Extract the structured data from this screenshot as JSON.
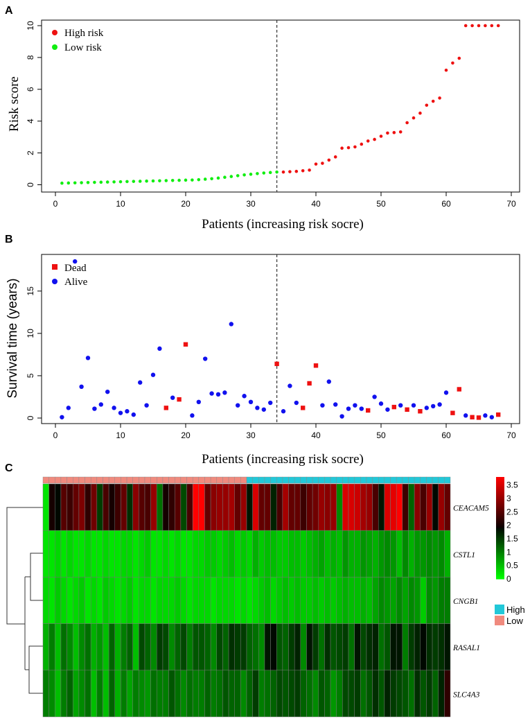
{
  "panels": {
    "a": "A",
    "b": "B",
    "c": "C"
  },
  "chart_data": [
    {
      "type": "scatter",
      "panel": "A",
      "xlabel": "Patients (increasing risk socre)",
      "ylabel": "Risk score",
      "xlim": [
        0,
        70
      ],
      "ylim": [
        0,
        10
      ],
      "xticks": [
        0,
        10,
        20,
        30,
        40,
        50,
        60,
        70
      ],
      "yticks": [
        0,
        2,
        4,
        6,
        8,
        10
      ],
      "cutoff_x": 34,
      "legend": [
        {
          "label": "High risk",
          "color": "#ee1111"
        },
        {
          "label": "Low risk",
          "color": "#11ee11"
        }
      ],
      "series": [
        {
          "name": "Low risk",
          "x": [
            1,
            2,
            3,
            4,
            5,
            6,
            7,
            8,
            9,
            10,
            11,
            12,
            13,
            14,
            15,
            16,
            17,
            18,
            19,
            20,
            21,
            22,
            23,
            24,
            25,
            26,
            27,
            28,
            29,
            30,
            31,
            32,
            33,
            34
          ],
          "y": [
            0.1,
            0.11,
            0.12,
            0.13,
            0.14,
            0.15,
            0.16,
            0.17,
            0.18,
            0.19,
            0.2,
            0.21,
            0.22,
            0.23,
            0.24,
            0.25,
            0.26,
            0.27,
            0.28,
            0.29,
            0.3,
            0.32,
            0.35,
            0.38,
            0.42,
            0.47,
            0.52,
            0.57,
            0.62,
            0.66,
            0.7,
            0.74,
            0.77,
            0.8
          ]
        },
        {
          "name": "High risk",
          "x": [
            35,
            36,
            37,
            38,
            39,
            40,
            41,
            42,
            43,
            44,
            45,
            46,
            47,
            48,
            49,
            50,
            51,
            52,
            53,
            54,
            55,
            56,
            57,
            58,
            59,
            60,
            61,
            62,
            63,
            64,
            65,
            66,
            67,
            68
          ],
          "y": [
            0.8,
            0.82,
            0.84,
            0.88,
            0.92,
            1.3,
            1.35,
            1.55,
            1.75,
            2.3,
            2.33,
            2.38,
            2.55,
            2.75,
            2.85,
            3.05,
            3.25,
            3.28,
            3.32,
            3.9,
            4.2,
            4.5,
            5.0,
            5.25,
            5.45,
            7.2,
            7.65,
            7.95,
            10,
            10,
            10,
            10,
            10,
            10
          ]
        }
      ]
    },
    {
      "type": "scatter",
      "panel": "B",
      "xlabel": "Patients (increasing risk socre)",
      "ylabel": "Survival time (years)",
      "xlim": [
        0,
        70
      ],
      "ylim": [
        0,
        19
      ],
      "xticks": [
        0,
        10,
        20,
        30,
        40,
        50,
        60,
        70
      ],
      "yticks": [
        0,
        5,
        10,
        15
      ],
      "cutoff_x": 34,
      "legend": [
        {
          "label": "Dead",
          "color": "#ee1111",
          "shape": "square"
        },
        {
          "label": "Alive",
          "color": "#1111ee",
          "shape": "circle"
        }
      ],
      "series": [
        {
          "name": "Alive",
          "x": [
            1,
            2,
            3,
            4,
            5,
            6,
            7,
            8,
            9,
            10,
            11,
            12,
            13,
            14,
            15,
            16,
            18,
            21,
            22,
            23,
            24,
            25,
            26,
            27,
            28,
            29,
            30,
            31,
            32,
            33,
            35,
            36,
            37,
            41,
            42,
            43,
            44,
            45,
            46,
            47,
            49,
            50,
            51,
            53,
            55,
            57,
            58,
            59,
            60,
            63,
            66,
            67
          ],
          "y": [
            0.1,
            1.2,
            18.5,
            3.7,
            7.1,
            1.1,
            1.6,
            3.1,
            1.2,
            0.6,
            0.8,
            0.4,
            4.2,
            1.5,
            5.1,
            8.2,
            2.4,
            0.3,
            1.9,
            7.0,
            2.9,
            2.8,
            3.0,
            11.1,
            1.5,
            2.6,
            1.9,
            1.2,
            1.0,
            1.8,
            0.8,
            3.8,
            1.8,
            1.5,
            4.3,
            1.6,
            0.2,
            1.1,
            1.5,
            1.1,
            2.5,
            1.7,
            1.0,
            1.5,
            1.5,
            1.2,
            1.4,
            1.6,
            3.0,
            0.3,
            0.3,
            0.1
          ]
        },
        {
          "name": "Dead",
          "x": [
            17,
            19,
            20,
            34,
            38,
            39,
            40,
            48,
            52,
            54,
            56,
            61,
            62,
            64,
            65,
            68
          ],
          "y": [
            1.2,
            2.2,
            8.7,
            6.4,
            1.2,
            4.1,
            6.2,
            0.9,
            1.3,
            1.0,
            0.8,
            0.6,
            3.4,
            0.1,
            0.05,
            0.4
          ]
        }
      ]
    },
    {
      "type": "heatmap",
      "panel": "C",
      "genes": [
        "CEACAM5",
        "CSTL1",
        "CNGB1",
        "RASAL1",
        "SLC4A3"
      ],
      "n_patients": 68,
      "group_split": 34,
      "group_legend": [
        {
          "label": "High",
          "color": "#22c8d8"
        },
        {
          "label": "Low",
          "color": "#f08a7e"
        }
      ],
      "colorbar_ticks": [
        "3.5",
        "3",
        "2.5",
        "2",
        "1.5",
        "1",
        "0.5",
        "0"
      ],
      "color_range": [
        0,
        3.8
      ],
      "values": [
        [
          0.2,
          2.0,
          1.9,
          2.5,
          2.3,
          2.6,
          2.8,
          2.2,
          2.7,
          1.5,
          2.4,
          2.0,
          2.3,
          2.6,
          1.6,
          2.9,
          2.5,
          2.4,
          3.0,
          1.1,
          2.0,
          2.2,
          2.5,
          1.4,
          2.4,
          3.8,
          3.8,
          2.6,
          2.9,
          3.0,
          3.0,
          3.1,
          2.6,
          3.0,
          1.8,
          3.5,
          2.6,
          2.6,
          1.7,
          2.4,
          3.1,
          2.6,
          2.6,
          2.3,
          2.6,
          2.7,
          3.0,
          2.9,
          3.0,
          0.9,
          3.5,
          3.5,
          3.4,
          3.1,
          3.0,
          2.4,
          1.8,
          3.5,
          3.6,
          3.8,
          2.3,
          1.2,
          2.9,
          2.4,
          3.0,
          1.9,
          3.0,
          2.6
        ],
        [
          0.2,
          0.2,
          0.3,
          0.2,
          0.3,
          0.2,
          0.2,
          0.3,
          0.2,
          0.2,
          0.3,
          0.2,
          0.2,
          0.3,
          0.3,
          0.2,
          0.3,
          0.4,
          0.2,
          0.2,
          0.3,
          0.2,
          0.3,
          0.2,
          0.2,
          0.3,
          0.3,
          0.4,
          0.4,
          0.3,
          0.4,
          0.5,
          0.3,
          0.4,
          0.3,
          0.6,
          0.4,
          0.5,
          0.5,
          0.4,
          0.4,
          0.5,
          0.5,
          0.4,
          0.5,
          0.6,
          0.7,
          0.5,
          0.6,
          0.5,
          0.8,
          0.6,
          0.6,
          0.8,
          0.7,
          0.6,
          0.8,
          0.9,
          0.8,
          0.5,
          0.9,
          0.6,
          0.8,
          0.8,
          0.9,
          0.8,
          0.9,
          0.6
        ],
        [
          0.3,
          0.2,
          0.4,
          0.3,
          0.2,
          0.3,
          0.4,
          0.2,
          0.3,
          0.2,
          0.4,
          0.3,
          0.2,
          0.3,
          0.4,
          0.2,
          0.3,
          0.3,
          0.2,
          0.3,
          0.3,
          0.3,
          0.4,
          0.3,
          0.2,
          0.3,
          0.3,
          0.3,
          0.2,
          0.3,
          0.3,
          0.3,
          0.2,
          0.3,
          0.2,
          0.3,
          0.4,
          0.5,
          0.3,
          0.4,
          0.5,
          0.4,
          0.5,
          0.4,
          0.4,
          0.5,
          0.4,
          0.5,
          0.4,
          0.5,
          0.6,
          0.5,
          0.5,
          0.6,
          0.5,
          0.7,
          0.9,
          0.8,
          0.7,
          0.9,
          0.7,
          0.9,
          0.8,
          0.4,
          0.9,
          0.8,
          1.0,
          1.0
        ],
        [
          0.6,
          1.0,
          0.5,
          1.1,
          0.9,
          0.5,
          0.9,
          1.1,
          0.6,
          0.8,
          0.5,
          1.2,
          0.6,
          1.0,
          1.2,
          0.5,
          1.4,
          1.2,
          0.9,
          1.5,
          1.4,
          0.9,
          1.2,
          1.4,
          1.0,
          1.3,
          1.3,
          1.2,
          0.9,
          1.4,
          1.2,
          1.6,
          1.5,
          1.5,
          1.2,
          1.1,
          0.9,
          1.8,
          1.9,
          1.3,
          1.2,
          1.5,
          1.7,
          0.9,
          1.8,
          1.5,
          1.1,
          1.6,
          1.3,
          1.4,
          1.5,
          1.1,
          1.8,
          1.4,
          1.6,
          1.7,
          1.1,
          1.3,
          1.8,
          1.8,
          1.0,
          1.5,
          1.7,
          1.9,
          1.6,
          1.5,
          1.6,
          1.8
        ],
        [
          1.0,
          0.9,
          0.5,
          1.0,
          1.2,
          0.7,
          0.9,
          1.1,
          0.5,
          1.0,
          0.5,
          1.2,
          0.6,
          1.0,
          0.7,
          1.0,
          0.9,
          0.8,
          1.1,
          1.0,
          1.0,
          1.3,
          1.1,
          0.9,
          1.1,
          1.0,
          1.0,
          1.2,
          1.0,
          1.1,
          1.3,
          1.2,
          1.2,
          0.9,
          1.2,
          1.5,
          1.0,
          1.1,
          1.2,
          1.4,
          1.3,
          1.4,
          1.5,
          1.2,
          1.1,
          0.9,
          1.3,
          1.2,
          0.8,
          1.0,
          1.4,
          1.4,
          1.5,
          1.1,
          1.3,
          1.6,
          1.3,
          1.7,
          1.5,
          1.4,
          1.3,
          1.1,
          1.6,
          1.3,
          1.5,
          1.2,
          1.7,
          2.2
        ]
      ]
    }
  ]
}
